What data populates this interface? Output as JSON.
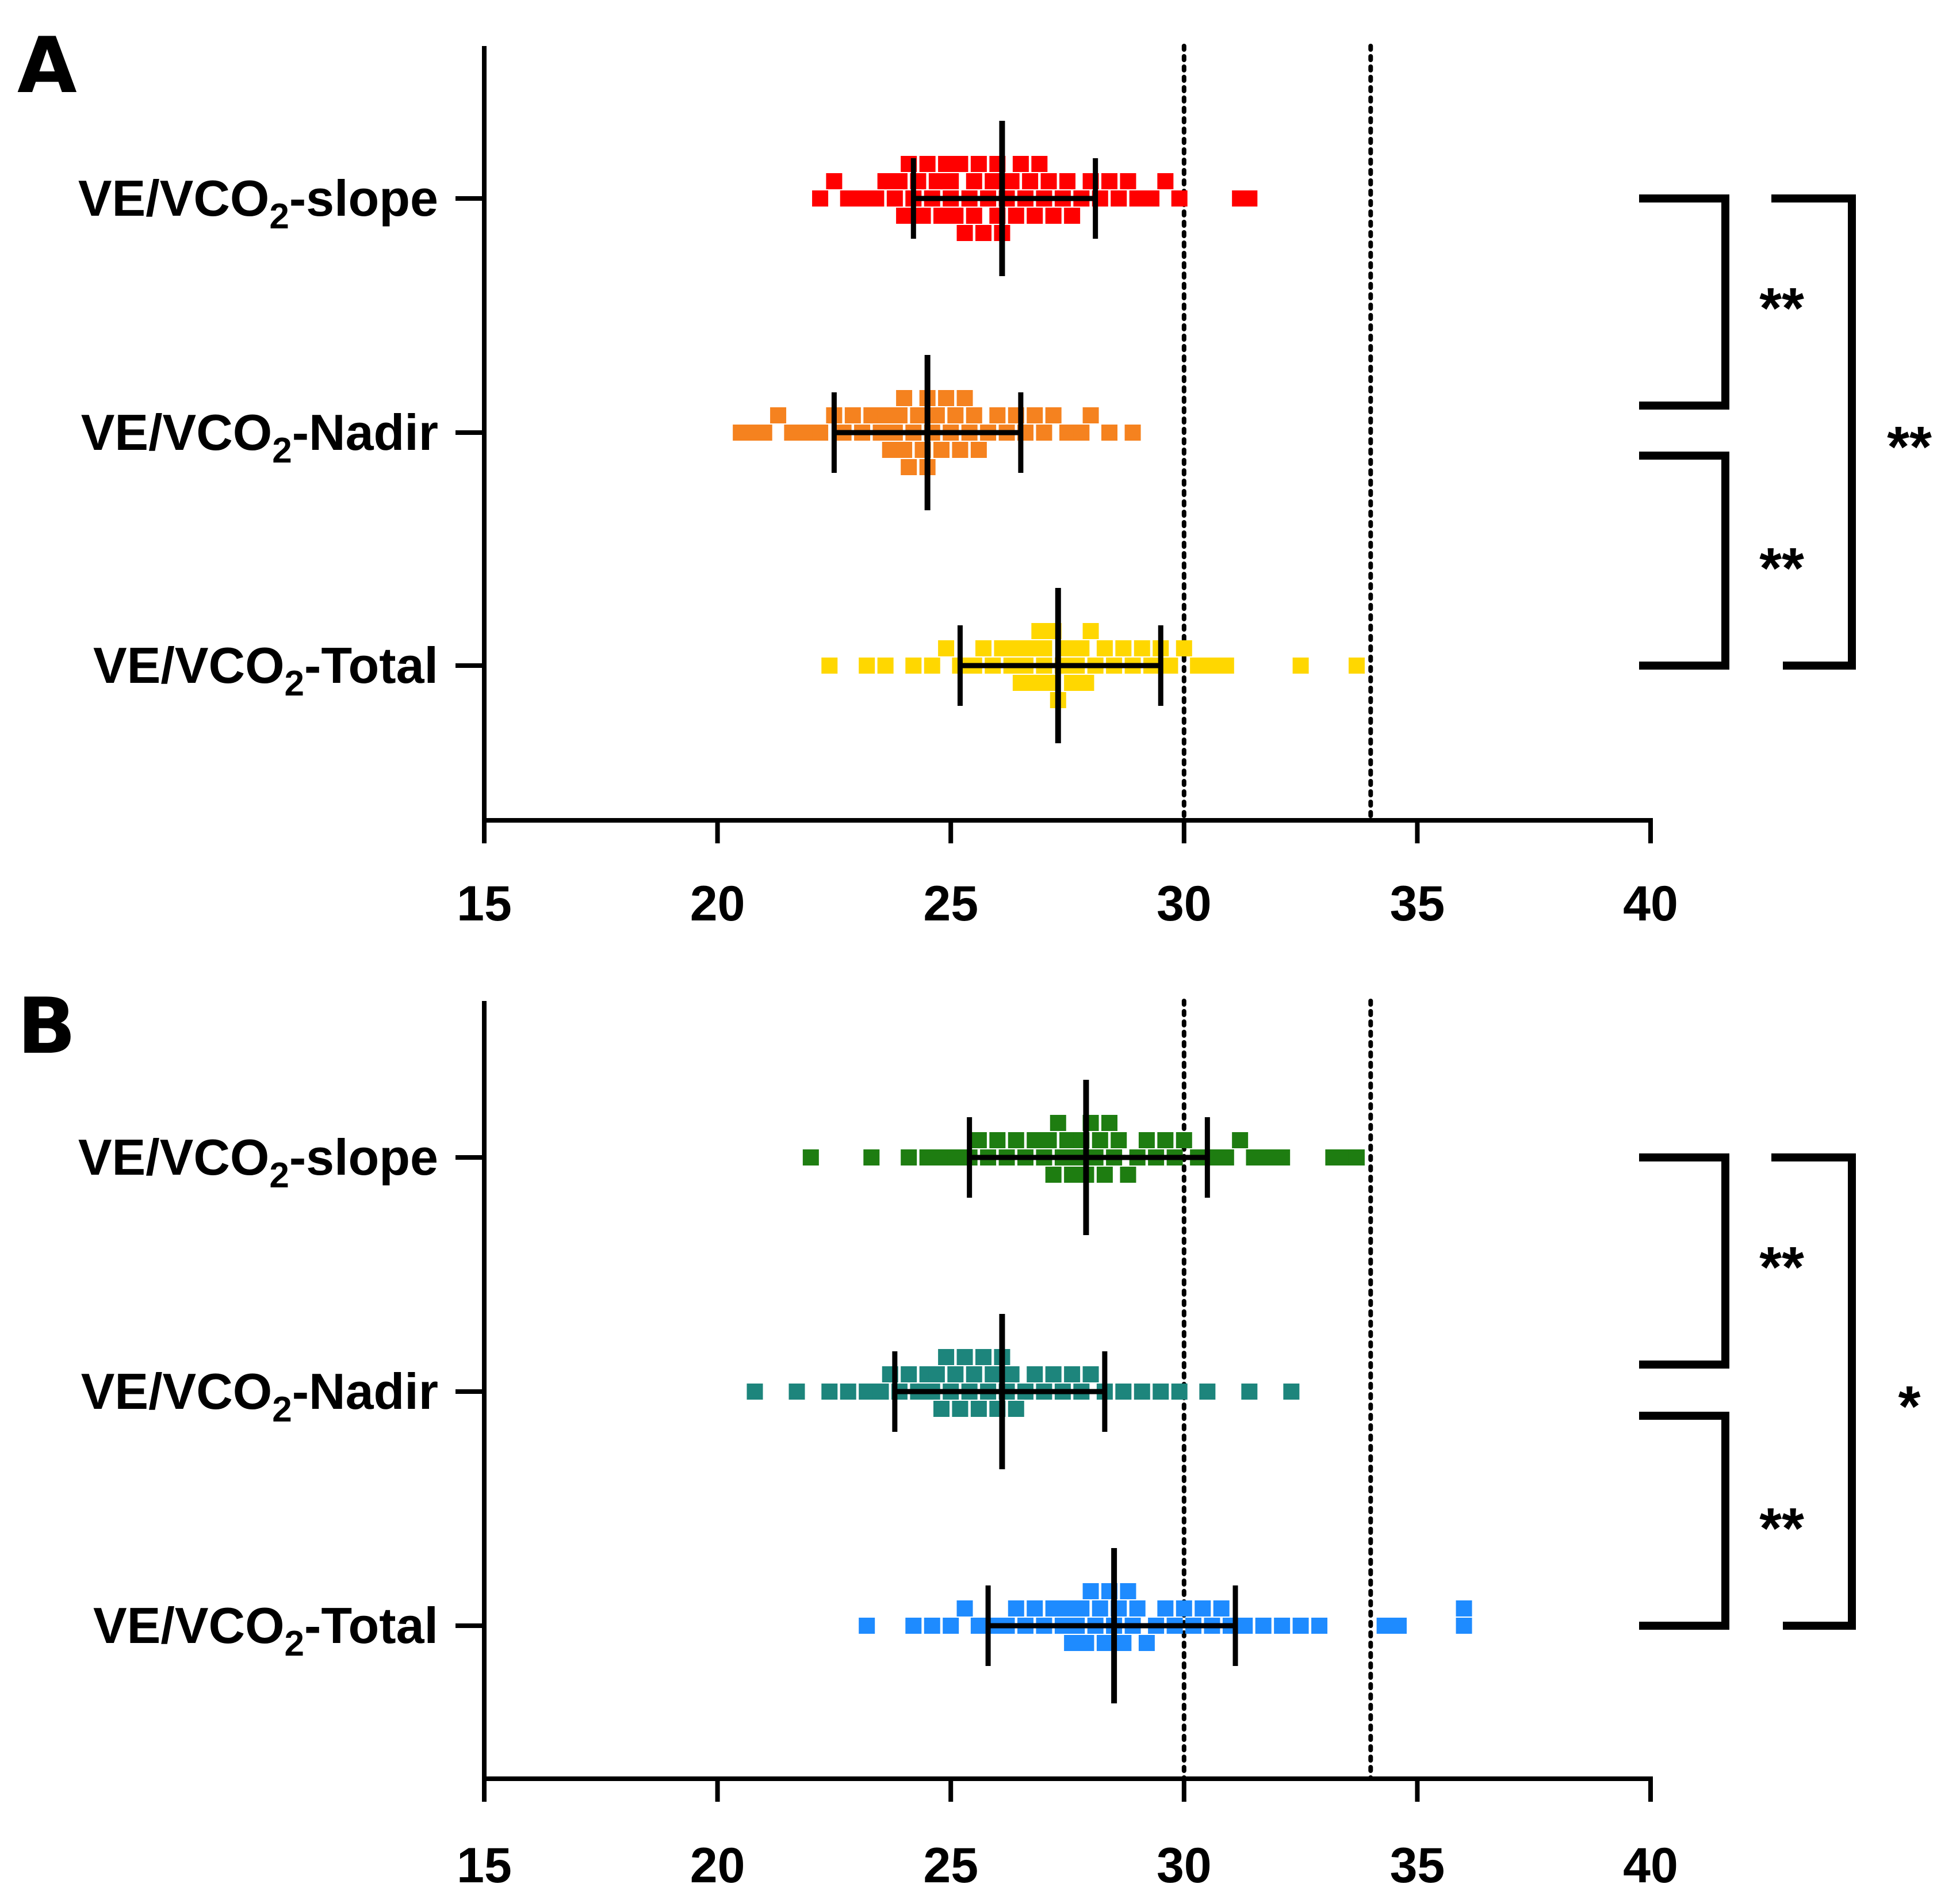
{
  "chart_data": [
    {
      "panel": "A",
      "type": "scatter",
      "categories": [
        "VE/VCO2-slope",
        "VE/VCO2-Nadir",
        "VE/VCO2-Total"
      ],
      "xlim": [
        15,
        40
      ],
      "xticks": [
        15,
        20,
        25,
        30,
        35,
        40
      ],
      "reference_lines": [
        30,
        34
      ],
      "series": [
        {
          "category": "VE/VCO2-slope",
          "color": "#ff0000",
          "mean": 26.1,
          "sd_low": 24.2,
          "sd_high": 28.1,
          "values": [
            22.2,
            22.5,
            22.8,
            23.1,
            23.4,
            23.6,
            23.8,
            23.9,
            24.0,
            24.1,
            24.2,
            24.3,
            24.4,
            24.5,
            24.6,
            24.7,
            24.8,
            24.9,
            25.0,
            25.0,
            25.1,
            25.2,
            25.3,
            25.4,
            25.5,
            25.5,
            25.6,
            25.7,
            25.8,
            25.9,
            26.0,
            26.0,
            26.1,
            26.2,
            26.3,
            26.4,
            26.5,
            26.6,
            26.7,
            26.8,
            26.9,
            27.0,
            27.1,
            27.2,
            27.4,
            27.5,
            27.6,
            27.8,
            28.0,
            28.2,
            28.4,
            28.6,
            28.8,
            29.0,
            29.3,
            29.6,
            29.9,
            31.2,
            31.4
          ]
        },
        {
          "category": "VE/VCO2-Nadir",
          "color": "#f5821f",
          "mean": 24.5,
          "sd_low": 22.5,
          "sd_high": 26.5,
          "values": [
            20.5,
            20.8,
            21.0,
            21.3,
            21.6,
            21.9,
            22.2,
            22.5,
            22.7,
            22.9,
            23.1,
            23.3,
            23.5,
            23.6,
            23.7,
            23.8,
            23.9,
            24.0,
            24.0,
            24.1,
            24.2,
            24.3,
            24.4,
            24.5,
            24.5,
            24.6,
            24.7,
            24.8,
            24.9,
            25.0,
            25.1,
            25.2,
            25.3,
            25.4,
            25.5,
            25.6,
            25.8,
            26.0,
            26.2,
            26.4,
            26.6,
            26.8,
            27.0,
            27.2,
            27.5,
            27.8,
            28.0,
            28.4,
            28.9
          ]
        },
        {
          "category": "VE/VCO2-Total",
          "color": "#ffd700",
          "mean": 27.3,
          "sd_low": 25.2,
          "sd_high": 29.5,
          "values": [
            22.4,
            23.2,
            23.6,
            24.2,
            24.6,
            24.9,
            25.2,
            25.5,
            25.7,
            25.9,
            26.1,
            26.3,
            26.4,
            26.5,
            26.6,
            26.7,
            26.8,
            26.9,
            27.0,
            27.0,
            27.1,
            27.2,
            27.3,
            27.4,
            27.5,
            27.6,
            27.7,
            27.8,
            27.9,
            28.0,
            28.1,
            28.3,
            28.5,
            28.7,
            28.9,
            29.1,
            29.3,
            29.5,
            29.7,
            30.0,
            30.3,
            30.6,
            30.9,
            32.5,
            33.7
          ]
        }
      ],
      "significance": [
        {
          "between": [
            "VE/VCO2-slope",
            "VE/VCO2-Nadir"
          ],
          "label": "**"
        },
        {
          "between": [
            "VE/VCO2-Nadir",
            "VE/VCO2-Total"
          ],
          "label": "**"
        },
        {
          "between": [
            "VE/VCO2-slope",
            "VE/VCO2-Total"
          ],
          "label": "**"
        }
      ]
    },
    {
      "panel": "B",
      "type": "scatter",
      "categories": [
        "VE/VCO2-slope",
        "VE/VCO2-Nadir",
        "VE/VCO2-Total"
      ],
      "xlim": [
        15,
        40
      ],
      "xticks": [
        15,
        20,
        25,
        30,
        35,
        40
      ],
      "reference_lines": [
        30,
        34
      ],
      "series": [
        {
          "category": "VE/VCO2-slope",
          "color": "#1e7d11",
          "mean": 27.9,
          "sd_low": 25.4,
          "sd_high": 30.5,
          "values": [
            22.0,
            23.3,
            24.1,
            24.5,
            24.8,
            25.1,
            25.4,
            25.6,
            25.8,
            26.0,
            26.2,
            26.4,
            26.6,
            26.8,
            27.0,
            27.1,
            27.2,
            27.3,
            27.4,
            27.5,
            27.6,
            27.7,
            27.8,
            27.9,
            28.0,
            28.1,
            28.2,
            28.3,
            28.4,
            28.5,
            28.6,
            28.8,
            29.0,
            29.2,
            29.4,
            29.6,
            29.8,
            30.0,
            30.3,
            30.6,
            30.9,
            31.2,
            31.5,
            31.8,
            32.1,
            33.2,
            33.5,
            33.7
          ]
        },
        {
          "category": "VE/VCO2-Nadir",
          "color": "#1d857c",
          "mean": 26.1,
          "sd_low": 23.8,
          "sd_high": 28.3,
          "values": [
            20.8,
            21.7,
            22.4,
            22.8,
            23.2,
            23.5,
            23.7,
            23.9,
            24.1,
            24.3,
            24.5,
            24.6,
            24.7,
            24.8,
            24.9,
            25.0,
            25.1,
            25.2,
            25.3,
            25.4,
            25.5,
            25.6,
            25.7,
            25.8,
            25.9,
            26.0,
            26.1,
            26.2,
            26.3,
            26.4,
            26.6,
            26.8,
            27.0,
            27.2,
            27.4,
            27.6,
            27.8,
            28.0,
            28.3,
            28.7,
            29.1,
            29.5,
            29.9,
            30.5,
            31.4,
            32.3
          ]
        },
        {
          "category": "VE/VCO2-Total",
          "color": "#1e8bff",
          "mean": 28.5,
          "sd_low": 25.8,
          "sd_high": 31.1,
          "values": [
            23.2,
            24.2,
            24.6,
            25.0,
            25.3,
            25.6,
            25.9,
            26.2,
            26.4,
            26.6,
            26.8,
            27.0,
            27.2,
            27.4,
            27.5,
            27.6,
            27.7,
            27.8,
            27.9,
            28.0,
            28.1,
            28.2,
            28.3,
            28.4,
            28.5,
            28.6,
            28.7,
            28.8,
            28.9,
            29.0,
            29.2,
            29.4,
            29.6,
            29.8,
            30.0,
            30.2,
            30.4,
            30.6,
            30.8,
            31.0,
            31.3,
            31.7,
            32.1,
            32.5,
            32.9,
            34.3,
            34.6,
            36.0,
            36.0
          ]
        }
      ],
      "significance": [
        {
          "between": [
            "VE/VCO2-slope",
            "VE/VCO2-Nadir"
          ],
          "label": "**"
        },
        {
          "between": [
            "VE/VCO2-Nadir",
            "VE/VCO2-Total"
          ],
          "label": "**"
        },
        {
          "between": [
            "VE/VCO2-slope",
            "VE/VCO2-Total"
          ],
          "label": "*"
        }
      ]
    }
  ]
}
